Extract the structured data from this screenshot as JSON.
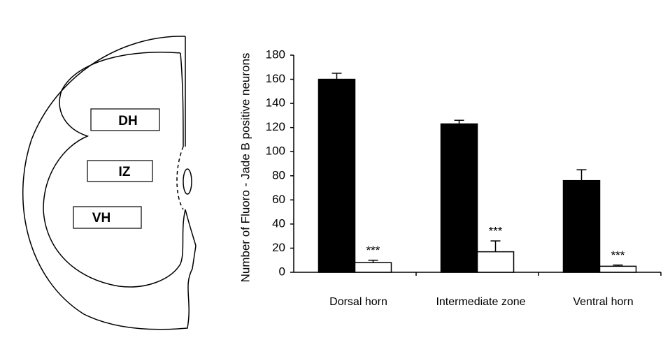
{
  "diagram": {
    "labels": [
      "DH",
      "IZ",
      "VH"
    ]
  },
  "chart_data": {
    "type": "bar",
    "y_label": "Number of Fluoro - Jade B positive neurons",
    "categories": [
      "Dorsal horn",
      "Intermediate zone",
      "Ventral horn"
    ],
    "series": [
      {
        "color": "#000000",
        "values": [
          160,
          123,
          76
        ],
        "errors": [
          5,
          3,
          9
        ]
      },
      {
        "color": "#ffffff",
        "values": [
          8,
          17,
          5
        ],
        "errors": [
          2,
          9,
          1
        ],
        "annotations": [
          "***",
          "***",
          "***"
        ]
      }
    ],
    "ylim": [
      0,
      180
    ],
    "yticks": [
      0,
      20,
      40,
      60,
      80,
      100,
      120,
      140,
      160,
      180
    ]
  }
}
